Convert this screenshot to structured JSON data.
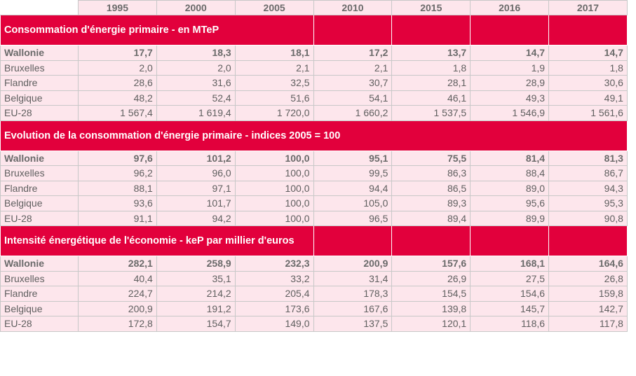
{
  "years": [
    "1995",
    "2000",
    "2005",
    "2010",
    "2015",
    "2016",
    "2017"
  ],
  "sections": [
    {
      "title": "Consommation d'énergie primaire - en MTeP",
      "rows": [
        {
          "label": "Wallonie",
          "values": [
            "17,7",
            "18,3",
            "18,1",
            "17,2",
            "13,7",
            "14,7",
            "14,7"
          ]
        },
        {
          "label": "Bruxelles",
          "values": [
            "2,0",
            "2,0",
            "2,1",
            "2,1",
            "1,8",
            "1,9",
            "1,8"
          ]
        },
        {
          "label": "Flandre",
          "values": [
            "28,6",
            "31,6",
            "32,5",
            "30,7",
            "28,1",
            "28,9",
            "30,6"
          ]
        },
        {
          "label": "Belgique",
          "values": [
            "48,2",
            "52,4",
            "51,6",
            "54,1",
            "46,1",
            "49,3",
            "49,1"
          ]
        },
        {
          "label": "EU-28",
          "values": [
            "1 567,4",
            "1 619,4",
            "1 720,0",
            "1 660,2",
            "1 537,5",
            "1 546,9",
            "1 561,6"
          ]
        }
      ]
    },
    {
      "title": "Evolution de la consommation d'énergie primaire - indices 2005 = 100",
      "rows": [
        {
          "label": "Wallonie",
          "values": [
            "97,6",
            "101,2",
            "100,0",
            "95,1",
            "75,5",
            "81,4",
            "81,3"
          ]
        },
        {
          "label": "Bruxelles",
          "values": [
            "96,2",
            "96,0",
            "100,0",
            "99,5",
            "86,3",
            "88,4",
            "86,7"
          ]
        },
        {
          "label": "Flandre",
          "values": [
            "88,1",
            "97,1",
            "100,0",
            "94,4",
            "86,5",
            "89,0",
            "94,3"
          ]
        },
        {
          "label": "Belgique",
          "values": [
            "93,6",
            "101,7",
            "100,0",
            "105,0",
            "89,3",
            "95,6",
            "95,3"
          ]
        },
        {
          "label": "EU-28",
          "values": [
            "91,1",
            "94,2",
            "100,0",
            "96,5",
            "89,4",
            "89,9",
            "90,8"
          ]
        }
      ]
    },
    {
      "title": "Intensité énergétique de l'économie - keP par millier d'euros",
      "rows": [
        {
          "label": "Wallonie",
          "values": [
            "282,1",
            "258,9",
            "232,3",
            "200,9",
            "157,6",
            "168,1",
            "164,6"
          ]
        },
        {
          "label": "Bruxelles",
          "values": [
            "40,4",
            "35,1",
            "33,2",
            "31,4",
            "26,9",
            "27,5",
            "26,8"
          ]
        },
        {
          "label": "Flandre",
          "values": [
            "224,7",
            "214,2",
            "205,4",
            "178,3",
            "154,5",
            "154,6",
            "159,8"
          ]
        },
        {
          "label": "Belgique",
          "values": [
            "200,9",
            "191,2",
            "173,6",
            "167,6",
            "139,8",
            "145,7",
            "142,7"
          ]
        },
        {
          "label": "EU-28",
          "values": [
            "172,8",
            "154,7",
            "149,0",
            "137,5",
            "120,1",
            "118,6",
            "117,8"
          ]
        }
      ]
    }
  ],
  "colors": {
    "section_header": "#e2003c",
    "cell_background": "#fde6ec",
    "text": "#606060"
  }
}
